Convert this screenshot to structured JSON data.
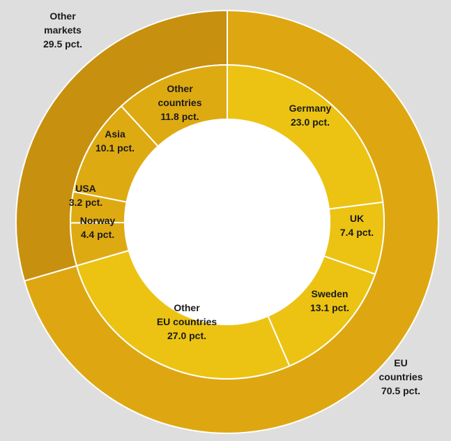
{
  "chart_data": {
    "type": "pie",
    "subtype": "nested-donut",
    "title": "",
    "unit": "pct.",
    "outer": [
      {
        "label_lines": [
          "EU",
          "countries"
        ],
        "value": 70.5,
        "value_text": "70.5 pct.",
        "color": "#dea712"
      },
      {
        "label_lines": [
          "Other",
          "markets"
        ],
        "value": 29.5,
        "value_text": "29.5 pct.",
        "color": "#c8900f"
      }
    ],
    "inner": [
      {
        "label_lines": [
          "Germany"
        ],
        "value": 23.0,
        "value_text": "23.0 pct.",
        "color": "#ecc313"
      },
      {
        "label_lines": [
          "UK"
        ],
        "value": 7.4,
        "value_text": "7.4 pct.",
        "color": "#ecc313"
      },
      {
        "label_lines": [
          "Sweden"
        ],
        "value": 13.1,
        "value_text": "13.1 pct.",
        "color": "#ecc313"
      },
      {
        "label_lines": [
          "Other",
          "EU countries"
        ],
        "value": 27.0,
        "value_text": "27.0 pct.",
        "color": "#ecc313"
      },
      {
        "label_lines": [
          "Norway"
        ],
        "value": 4.4,
        "value_text": "4.4 pct.",
        "color": "#deaa12"
      },
      {
        "label_lines": [
          "USA"
        ],
        "value": 3.2,
        "value_text": "3.2 pct.",
        "color": "#deaa12"
      },
      {
        "label_lines": [
          "Asia"
        ],
        "value": 10.1,
        "value_text": "10.1 pct.",
        "color": "#deaa12"
      },
      {
        "label_lines": [
          "Other",
          "countries"
        ],
        "value": 11.8,
        "value_text": "11.8 pct.",
        "color": "#deaa12"
      }
    ],
    "center_color": "#ffffff",
    "separator_color": "#ffffff",
    "background_color": "#dedede",
    "legend": "none"
  }
}
